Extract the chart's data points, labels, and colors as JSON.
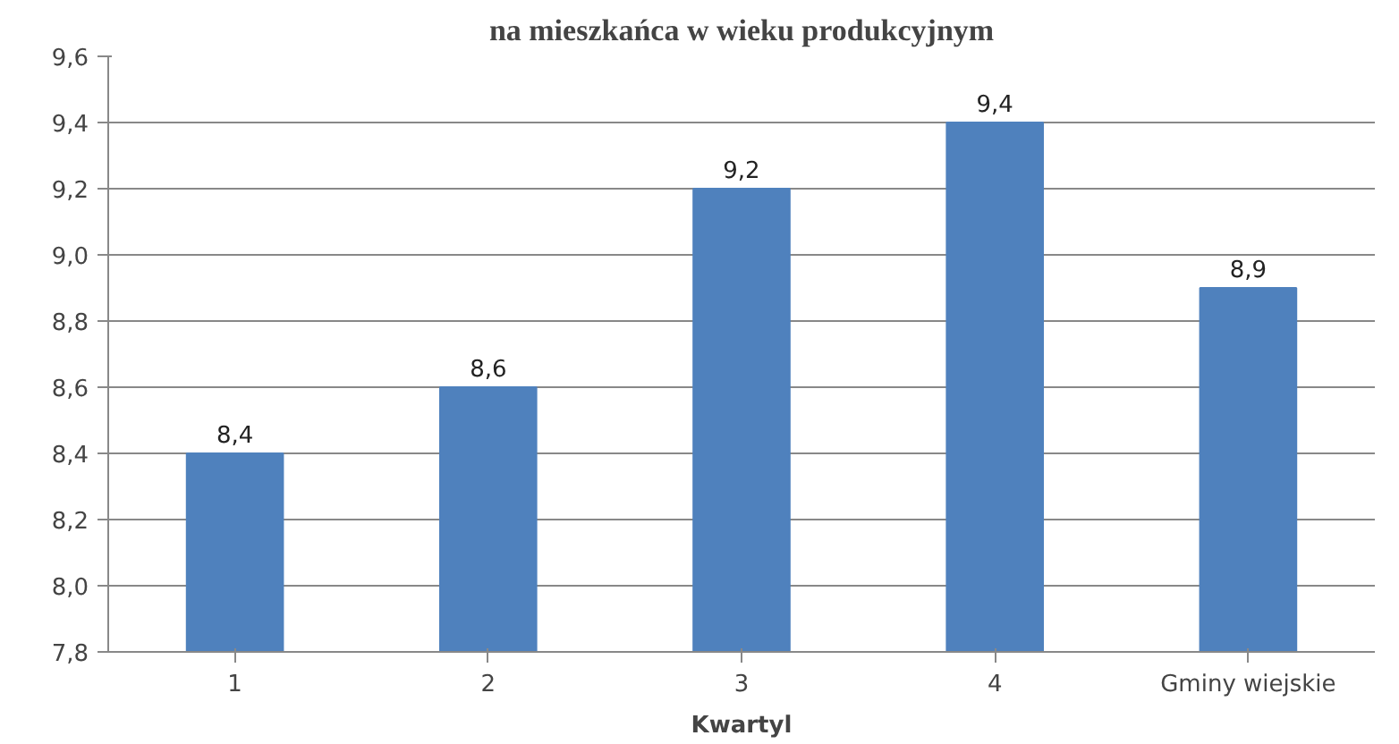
{
  "chart_data": {
    "type": "bar",
    "title": "na mieszkańca w wieku produkcyjnym",
    "xlabel": "Kwartyl",
    "categories": [
      "1",
      "2",
      "3",
      "4",
      "Gminy wiejskie"
    ],
    "values": [
      8.4,
      8.6,
      9.2,
      9.4,
      8.9
    ],
    "value_labels": [
      "8,4",
      "8,6",
      "9,2",
      "9,4",
      "8,9"
    ],
    "color": "#4f81bd",
    "ylim": [
      7.8,
      9.6
    ],
    "yticks": [
      {
        "value": 7.8,
        "label": "7,8"
      },
      {
        "value": 8.0,
        "label": "8,0"
      },
      {
        "value": 8.2,
        "label": "8,2"
      },
      {
        "value": 8.4,
        "label": "8,4"
      },
      {
        "value": 8.6,
        "label": "8,6"
      },
      {
        "value": 8.8,
        "label": "8,8"
      },
      {
        "value": 9.0,
        "label": "9,0"
      },
      {
        "value": 9.2,
        "label": "9,2"
      },
      {
        "value": 9.4,
        "label": "9,4"
      },
      {
        "value": 9.6,
        "label": "9,6"
      }
    ],
    "grid": "y"
  }
}
